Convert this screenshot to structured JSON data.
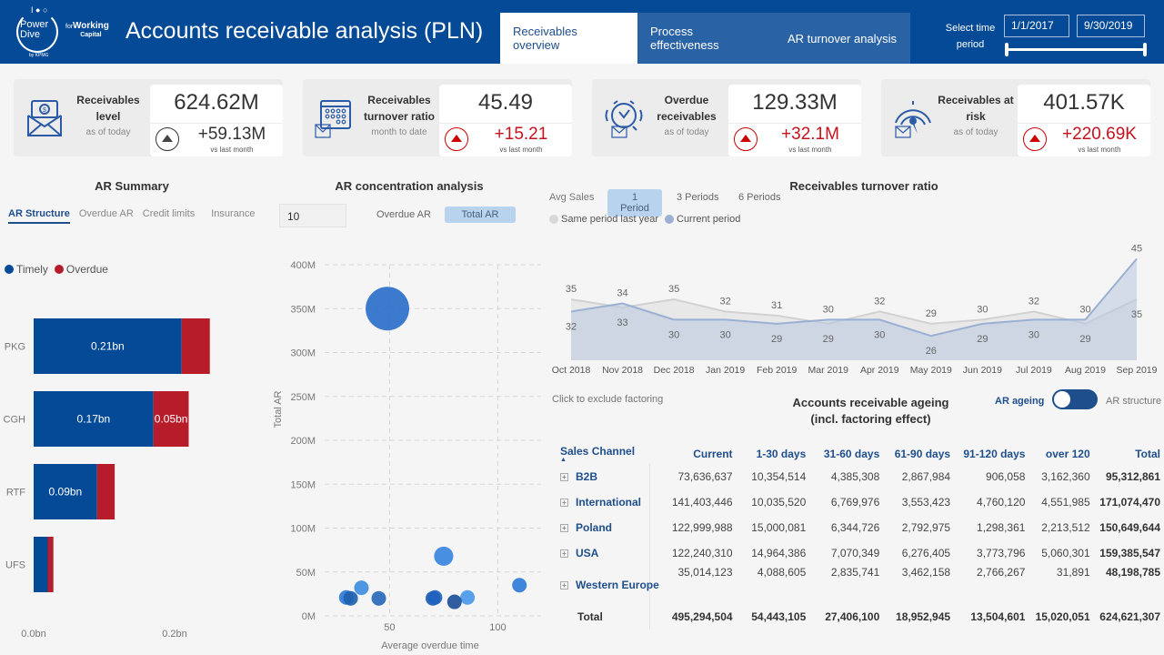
{
  "header": {
    "logo": {
      "line1": "Power",
      "line2": "Dive",
      "for": "for",
      "brand": "Working",
      "brand_sub": "Capital",
      "by": "by KPMG"
    },
    "title": "Accounts receivable analysis (PLN)",
    "tabs": [
      {
        "label": "Receivables overview",
        "active": true
      },
      {
        "label": "Process effectiveness",
        "active": false
      },
      {
        "label": "AR turnover analysis",
        "active": false
      }
    ],
    "period_label": "Select time period",
    "date_from": "1/1/2017",
    "date_to": "9/30/2019",
    "slider_range": [
      0,
      1
    ]
  },
  "kpis": [
    {
      "label": "Receivables level",
      "sub": "as of today",
      "value": "624.62M",
      "delta": "+59.13M",
      "vs": "vs last month",
      "trend": "up",
      "alert": false,
      "icon": "money-envelope-icon"
    },
    {
      "label": "Receivables turnover ratio",
      "sub": "month to date",
      "value": "45.49",
      "delta": "+15.21",
      "vs": "vs last month",
      "trend": "up",
      "alert": true,
      "icon": "calendar-money-icon"
    },
    {
      "label": "Overdue receivables",
      "sub": "as of today",
      "value": "129.33M",
      "delta": "+32.1M",
      "vs": "vs last month",
      "trend": "up",
      "alert": true,
      "icon": "alarm-clock-icon"
    },
    {
      "label": "Receivables at risk",
      "sub": "as of today",
      "value": "401.57K",
      "delta": "+220.69K",
      "vs": "vs last month",
      "trend": "up",
      "alert": true,
      "icon": "gauge-icon"
    }
  ],
  "ar_summary": {
    "title": "AR Summary",
    "tabs": [
      "AR Structure",
      "Overdue AR",
      "Credit limits",
      "Insurance"
    ],
    "active_tab": "AR Structure"
  },
  "ar_concentration": {
    "title": "AR concentration analysis",
    "top_n": "10",
    "toggles": [
      "Overdue AR",
      "Total AR"
    ],
    "active_toggle": "Total AR"
  },
  "turnover": {
    "title": "Receivables turnover ratio",
    "avg_sales_label": "Avg Sales",
    "periods": [
      "1 Period",
      "3 Periods",
      "6 Periods"
    ],
    "active_period": "1 Period"
  },
  "ageing": {
    "exclude_text": "Click to exclude factoring",
    "title_line1": "Accounts receivable ageing",
    "title_line2": "(incl. factoring effect)",
    "toggle_left": "AR ageing",
    "toggle_right": "AR structure",
    "columns": [
      "Sales Channel",
      "Current",
      "1-30 days",
      "31-60 days",
      "61-90 days",
      "91-120 days",
      "over 120",
      "Total"
    ],
    "rows": [
      {
        "channel": "B2B",
        "values": [
          "73,636,637",
          "10,354,514",
          "4,385,308",
          "2,867,984",
          "906,058",
          "3,162,360",
          "95,312,861"
        ]
      },
      {
        "channel": "International",
        "values": [
          "141,403,446",
          "10,035,520",
          "6,769,976",
          "3,553,423",
          "4,760,120",
          "4,551,985",
          "171,074,470"
        ]
      },
      {
        "channel": "Poland",
        "values": [
          "122,999,988",
          "15,000,081",
          "6,344,726",
          "2,792,975",
          "1,298,361",
          "2,213,512",
          "150,649,644"
        ]
      },
      {
        "channel": "USA",
        "values": [
          "122,240,310",
          "14,964,386",
          "7,070,349",
          "6,276,405",
          "3,773,796",
          "5,060,301",
          "159,385,547"
        ]
      },
      {
        "channel": "Western Europe",
        "values": [
          "35,014,123",
          "4,088,605",
          "2,835,741",
          "3,462,158",
          "2,766,267",
          "31,891",
          "48,198,785"
        ]
      }
    ],
    "total": {
      "channel": "Total",
      "values": [
        "495,294,504",
        "54,443,105",
        "27,406,100",
        "18,952,945",
        "13,504,601",
        "15,020,051",
        "624,621,307"
      ]
    }
  },
  "colors": {
    "brand": "#044a96",
    "timely": "#044a96",
    "overdue": "#b71c2b",
    "bubble": "#2a76d2",
    "current": "#9bb0d3",
    "last_year": "#d8d8d8"
  },
  "chart_data": [
    {
      "type": "bar",
      "orientation": "horizontal-stacked",
      "title": "AR Summary - AR Structure",
      "categories": [
        "PKG",
        "CGH",
        "RTF",
        "UFS"
      ],
      "series": [
        {
          "name": "Timely",
          "values": [
            0.21,
            0.17,
            0.09,
            0.02
          ],
          "labels": [
            "0.21bn",
            "0.17bn",
            "0.09bn",
            ""
          ]
        },
        {
          "name": "Overdue",
          "values": [
            0.04,
            0.05,
            0.025,
            0.008
          ],
          "labels": [
            "",
            "0.05bn",
            "",
            ""
          ]
        }
      ],
      "xticks": [
        "0.0bn",
        "0.2bn"
      ],
      "xlim": [
        0,
        0.3
      ],
      "legend": "top-left"
    },
    {
      "type": "scatter",
      "title": "AR concentration analysis",
      "xlabel": "Average overdue time",
      "ylabel": "Total AR",
      "xlim": [
        20,
        120
      ],
      "ylim": [
        0,
        400
      ],
      "xticks": [
        50,
        100
      ],
      "yticks": [
        "0M",
        "50M",
        "100M",
        "150M",
        "200M",
        "250M",
        "300M",
        "350M",
        "400M"
      ],
      "points": [
        {
          "x": 49,
          "y": 350,
          "size": 350
        },
        {
          "x": 75,
          "y": 68,
          "size": 68
        },
        {
          "x": 110,
          "y": 35,
          "size": 35
        },
        {
          "x": 37,
          "y": 32,
          "size": 32
        },
        {
          "x": 30,
          "y": 21,
          "size": 21
        },
        {
          "x": 32,
          "y": 20,
          "size": 24
        },
        {
          "x": 45,
          "y": 20,
          "size": 22
        },
        {
          "x": 70,
          "y": 20,
          "size": 22
        },
        {
          "x": 71,
          "y": 21,
          "size": 22
        },
        {
          "x": 86,
          "y": 21,
          "size": 18
        },
        {
          "x": 80,
          "y": 16,
          "size": 20
        }
      ]
    },
    {
      "type": "area",
      "title": "Receivables turnover ratio",
      "categories": [
        "Oct 2018",
        "Nov 2018",
        "Dec 2018",
        "Jan 2019",
        "Feb 2019",
        "Mar 2019",
        "Apr 2019",
        "May 2019",
        "Jun 2019",
        "Jul 2019",
        "Aug 2019",
        "Sep 2019"
      ],
      "series": [
        {
          "name": "Same period last year",
          "values": [
            35,
            33,
            35,
            32,
            31,
            29,
            32,
            29,
            30,
            32,
            29,
            35
          ]
        },
        {
          "name": "Current period",
          "values": [
            32,
            34,
            30,
            30,
            29,
            30,
            30,
            26,
            29,
            30,
            30,
            45
          ]
        }
      ],
      "ylim": [
        20,
        46
      ],
      "legend": "top-left"
    }
  ]
}
